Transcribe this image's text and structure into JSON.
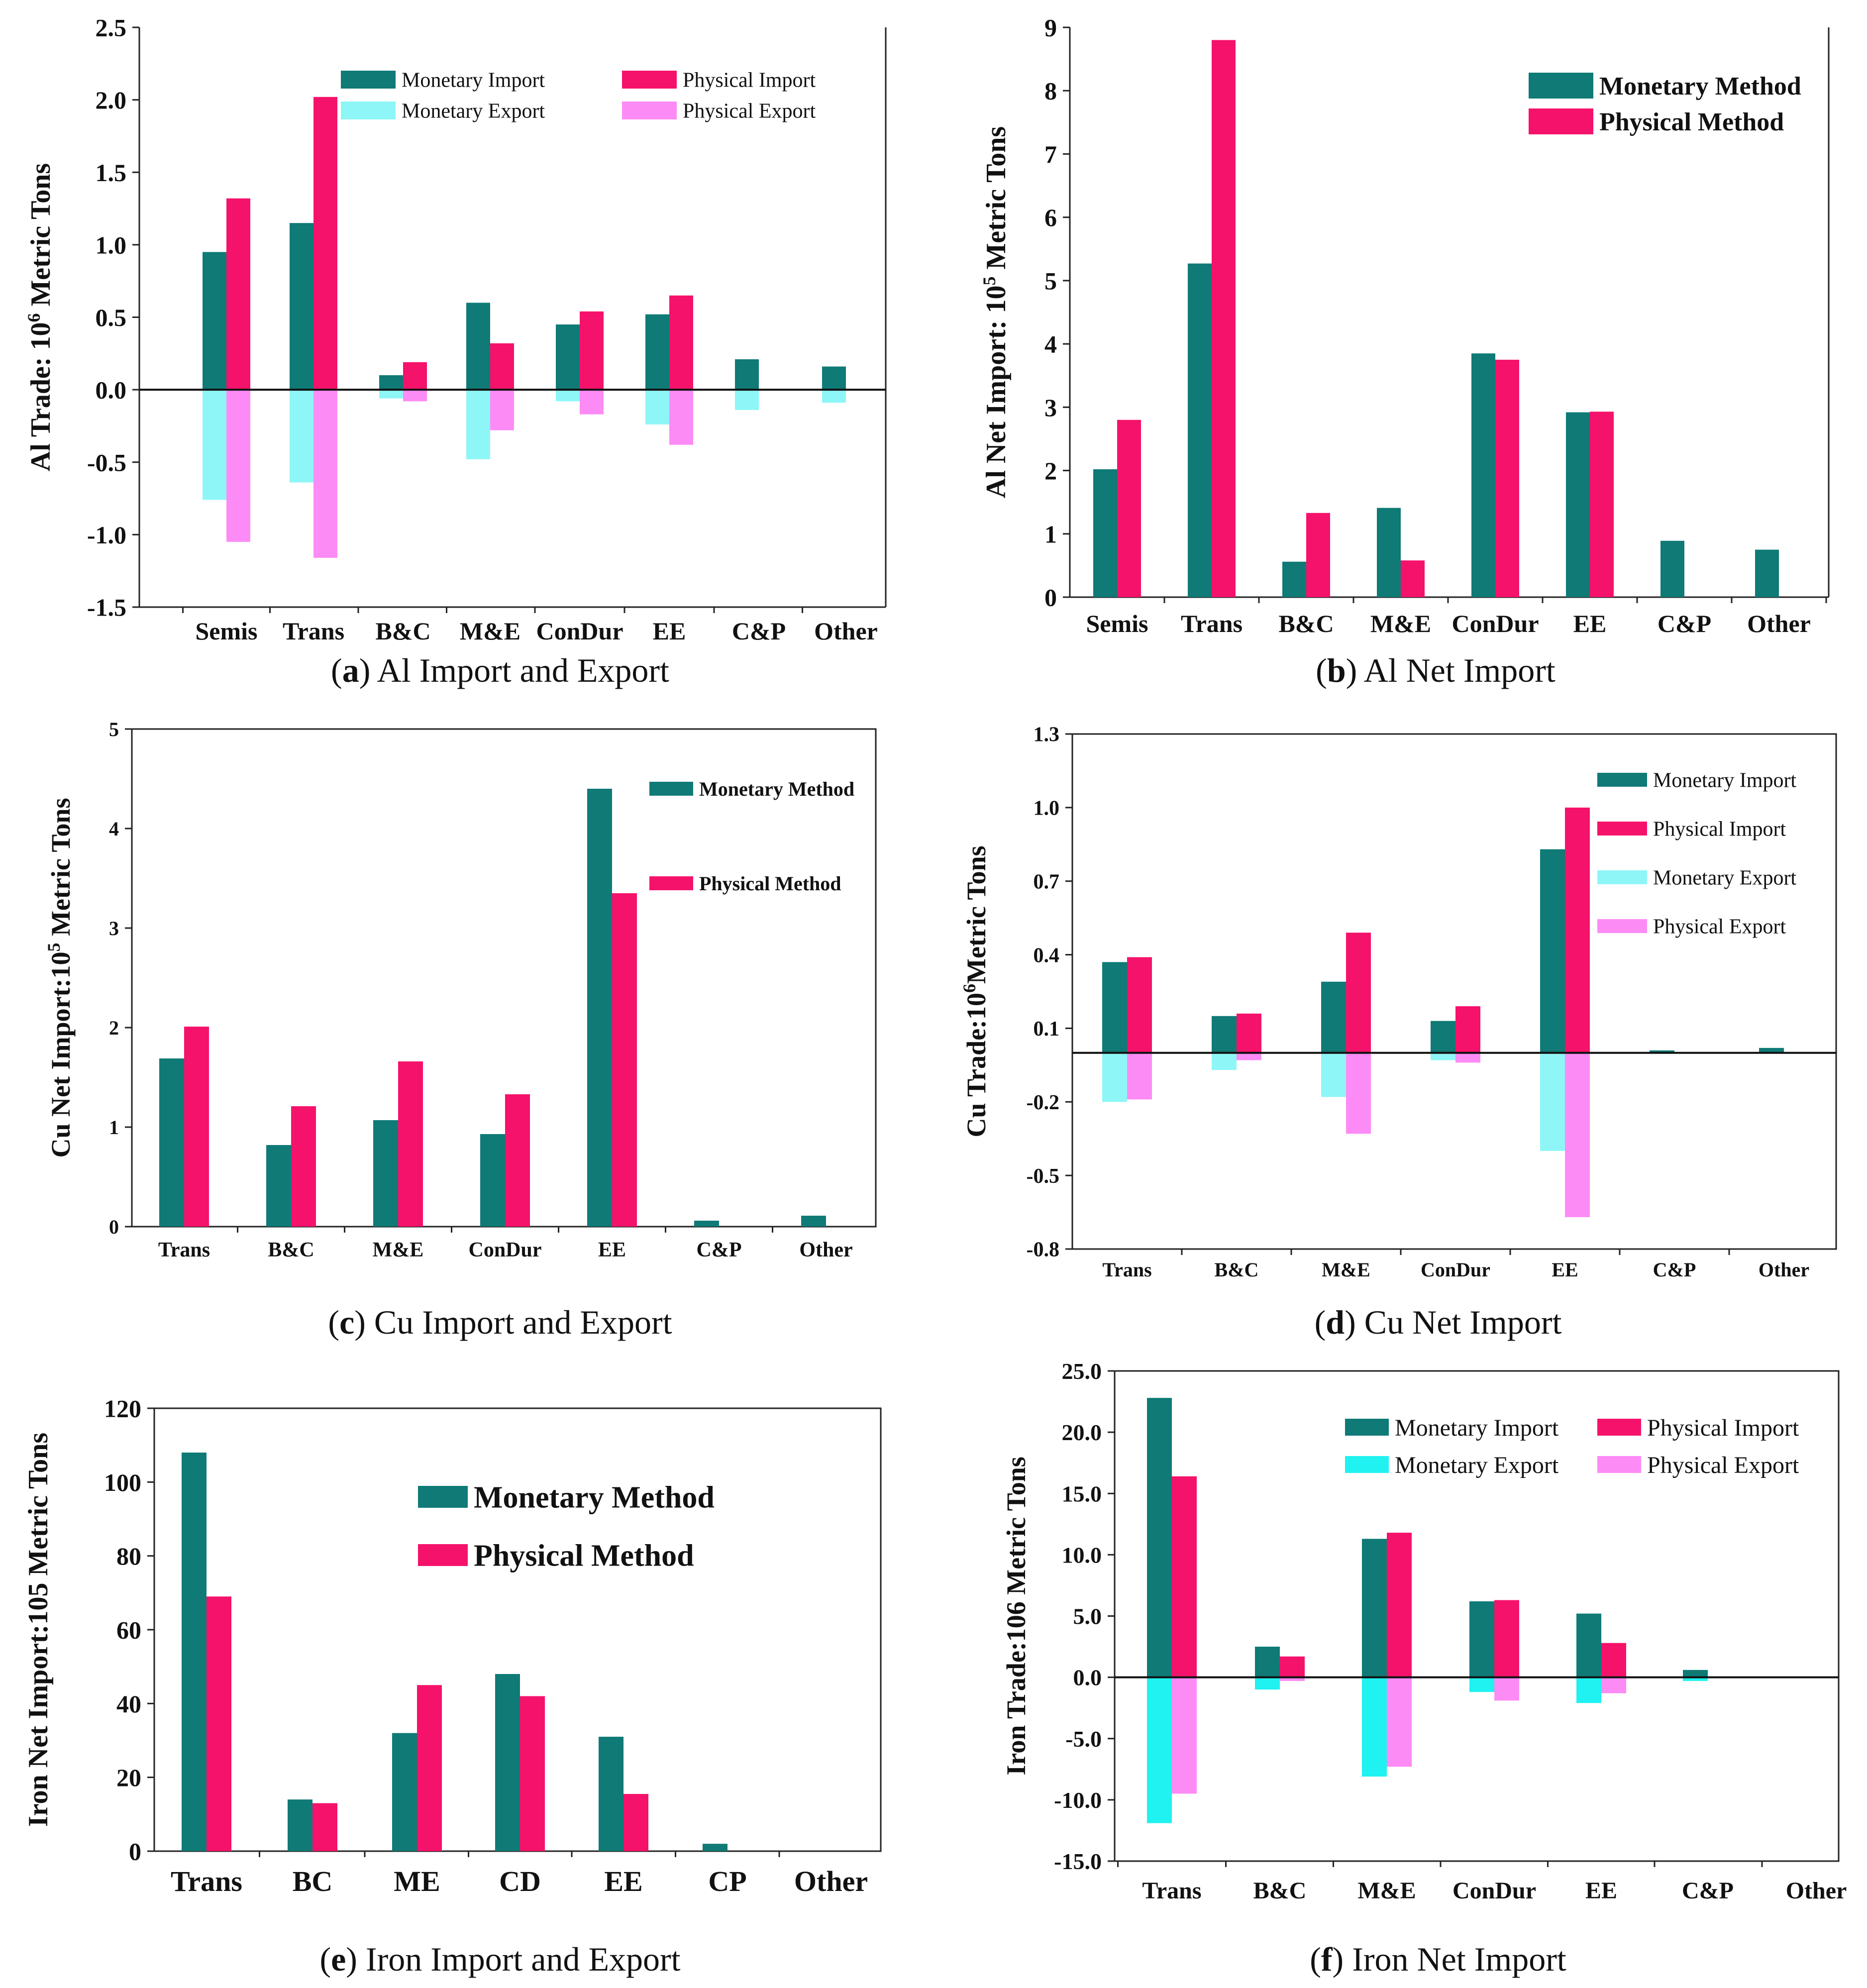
{
  "figure": {
    "colors": {
      "monetary_import": "#0f7a76",
      "physical_import": "#f5126b",
      "monetary_export": "#8ef6f6",
      "physical_export": "#fd8bf5",
      "monetary_export_iron": "#1ff2f0"
    }
  },
  "chart_data": [
    {
      "id": "a",
      "type": "bar",
      "caption_letter": "a",
      "caption_text": "Al Import and Export",
      "ylabel_pre": "Al Trade: 10",
      "ylabel_sup": "6",
      "ylabel_post": " Metric Tons",
      "ylim": [
        -1.5,
        2.5
      ],
      "yticks": [
        "2.5",
        "2.0",
        "1.5",
        "1.0",
        "0.5",
        "0.0",
        "-0.5",
        "-1.0",
        "-1.5"
      ],
      "categories": [
        "Semis",
        "Trans",
        "B&C",
        "M&E",
        "ConDur",
        "EE",
        "C&P",
        "Other"
      ],
      "legend": [
        "Monetary Import",
        "Monetary Export",
        "Physical Import",
        "Physical Export"
      ],
      "series": [
        {
          "name": "Monetary Import",
          "values": [
            0.95,
            1.15,
            0.1,
            0.6,
            0.45,
            0.52,
            0.21,
            0.16
          ]
        },
        {
          "name": "Physical Import",
          "values": [
            1.32,
            2.02,
            0.19,
            0.32,
            0.54,
            0.65,
            0,
            0
          ]
        },
        {
          "name": "Monetary Export",
          "values": [
            -0.76,
            -0.64,
            -0.06,
            -0.48,
            -0.08,
            -0.24,
            -0.14,
            -0.09
          ]
        },
        {
          "name": "Physical Export",
          "values": [
            -1.05,
            -1.16,
            -0.08,
            -0.28,
            -0.17,
            -0.38,
            0,
            0
          ]
        }
      ]
    },
    {
      "id": "b",
      "type": "bar",
      "caption_letter": "b",
      "caption_text": "Al Net Import",
      "ylabel_pre": "Al Net Import: 10",
      "ylabel_sup": "5",
      "ylabel_post": " Metric Tons",
      "ylim": [
        0,
        9
      ],
      "yticks": [
        "9",
        "8",
        "7",
        "6",
        "5",
        "4",
        "3",
        "2",
        "1",
        "0"
      ],
      "categories": [
        "Semis",
        "Trans",
        "B&C",
        "M&E",
        "ConDur",
        "EE",
        "C&P",
        "Other"
      ],
      "legend": [
        "Monetary Method",
        "Physical Method"
      ],
      "series": [
        {
          "name": "Monetary Method",
          "values": [
            2.02,
            5.27,
            0.56,
            1.41,
            3.85,
            2.92,
            0.89,
            0.75
          ]
        },
        {
          "name": "Physical Method",
          "values": [
            2.8,
            8.8,
            1.33,
            0.58,
            3.75,
            2.93,
            0,
            0
          ]
        }
      ]
    },
    {
      "id": "c",
      "type": "bar",
      "caption_letter": "c",
      "caption_text": "Cu Import and Export",
      "ylabel_pre": "Cu Net Import:10",
      "ylabel_sup": "5",
      "ylabel_post": " Metric Tons",
      "ylim": [
        0,
        5
      ],
      "yticks": [
        "5",
        "4",
        "3",
        "2",
        "1",
        "0"
      ],
      "categories": [
        "Trans",
        "B&C",
        "M&E",
        "ConDur",
        "EE",
        "C&P",
        "Other"
      ],
      "legend": [
        "Monetary Method",
        "Physical Method"
      ],
      "series": [
        {
          "name": "Monetary Method",
          "values": [
            1.69,
            0.82,
            1.07,
            0.93,
            4.4,
            0.06,
            0.11
          ]
        },
        {
          "name": "Physical Method",
          "values": [
            2.01,
            1.21,
            1.66,
            1.33,
            3.35,
            0,
            0
          ]
        }
      ]
    },
    {
      "id": "d",
      "type": "bar",
      "caption_letter": "d",
      "caption_text": "Cu Net Import",
      "ylabel_pre": "Cu Trade:10",
      "ylabel_sup": "6",
      "ylabel_post": "Metric Tons",
      "ylim": [
        -0.8,
        1.3
      ],
      "yticks": [
        "1.3",
        "1.0",
        "0.7",
        "0.4",
        "0.1",
        "-0.2",
        "-0.5",
        "-0.8"
      ],
      "categories": [
        "Trans",
        "B&C",
        "M&E",
        "ConDur",
        "EE",
        "C&P",
        "Other"
      ],
      "legend": [
        "Monetary Import",
        "Physical Import",
        "Monetary Export",
        "Physical Export"
      ],
      "series": [
        {
          "name": "Monetary Import",
          "values": [
            0.37,
            0.15,
            0.29,
            0.13,
            0.83,
            0.01,
            0.02
          ]
        },
        {
          "name": "Physical Import",
          "values": [
            0.39,
            0.16,
            0.49,
            0.19,
            1.0,
            0,
            0
          ]
        },
        {
          "name": "Monetary Export",
          "values": [
            -0.2,
            -0.07,
            -0.18,
            -0.03,
            -0.4,
            0,
            0
          ]
        },
        {
          "name": "Physical Export",
          "values": [
            -0.19,
            -0.03,
            -0.33,
            -0.04,
            -0.67,
            0,
            0
          ]
        }
      ]
    },
    {
      "id": "e",
      "type": "bar",
      "caption_letter": "e",
      "caption_text": "Iron Import and Export",
      "ylabel_pre": "Iron Net Import:105 Metric Tons",
      "ylabel_sup": "",
      "ylabel_post": "",
      "ylim": [
        0,
        120
      ],
      "yticks": [
        "120",
        "100",
        "80",
        "60",
        "40",
        "20",
        "0"
      ],
      "categories": [
        "Trans",
        "BC",
        "ME",
        "CD",
        "EE",
        "CP",
        "Other"
      ],
      "legend": [
        "Monetary Method",
        "Physical Method"
      ],
      "series": [
        {
          "name": "Monetary Method",
          "values": [
            108,
            14,
            32,
            48,
            31,
            2,
            0
          ]
        },
        {
          "name": "Physical Method",
          "values": [
            69,
            13,
            45,
            42,
            15.5,
            0,
            0
          ]
        }
      ]
    },
    {
      "id": "f",
      "type": "bar",
      "caption_letter": "f",
      "caption_text": "Iron Net Import",
      "ylabel_pre": "Iron Trade:106 Metric Tons",
      "ylabel_sup": "",
      "ylabel_post": "",
      "ylim": [
        -15,
        25
      ],
      "yticks": [
        "25.0",
        "20.0",
        "15.0",
        "10.0",
        "5.0",
        "0.0",
        "-5.0",
        "-10.0",
        "-15.0"
      ],
      "categories": [
        "Trans",
        "B&C",
        "M&E",
        "ConDur",
        "EE",
        "C&P",
        "Other"
      ],
      "legend": [
        "Monetary Import",
        "Physical Import",
        "Monetary Export",
        "Physical Export"
      ],
      "series": [
        {
          "name": "Monetary Import",
          "values": [
            22.8,
            2.5,
            11.3,
            6.2,
            5.2,
            0.6,
            0
          ]
        },
        {
          "name": "Physical Import",
          "values": [
            16.4,
            1.7,
            11.8,
            6.3,
            2.8,
            0,
            0
          ]
        },
        {
          "name": "Monetary Export",
          "values": [
            -11.9,
            -1.0,
            -8.1,
            -1.2,
            -2.1,
            -0.3,
            0
          ]
        },
        {
          "name": "Physical Export",
          "values": [
            -9.5,
            -0.3,
            -7.3,
            -1.9,
            -1.3,
            0,
            0
          ]
        }
      ]
    }
  ]
}
